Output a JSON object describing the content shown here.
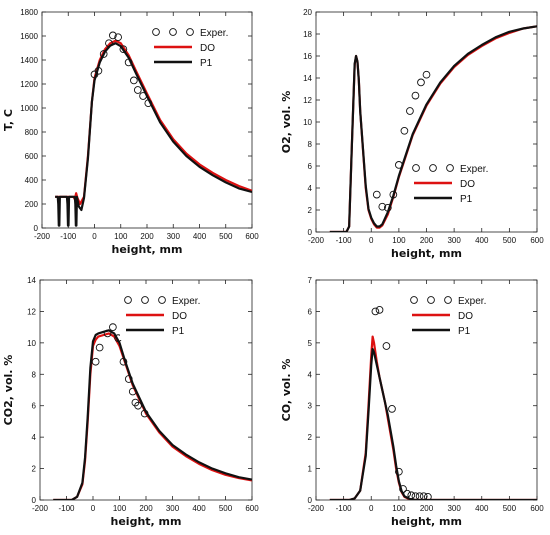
{
  "chart_data": [
    {
      "type": "line",
      "id": "temperature",
      "xlabel": "height,  mm",
      "ylabel": "T, C",
      "xlim": [
        -200,
        600
      ],
      "ylim": [
        0,
        1800
      ],
      "xticks": [
        -200,
        -100,
        0,
        100,
        200,
        300,
        400,
        500,
        600
      ],
      "yticks": [
        0,
        200,
        400,
        600,
        800,
        1000,
        1200,
        1400,
        1600,
        1800
      ],
      "legend": "top-right",
      "grid": false,
      "series": [
        {
          "name": "Exper.",
          "style": "marker",
          "color": "#111111",
          "x": [
            0,
            15,
            35,
            55,
            70,
            90,
            110,
            130,
            150,
            165,
            185,
            205
          ],
          "y": [
            1280,
            1310,
            1450,
            1540,
            1605,
            1590,
            1490,
            1380,
            1230,
            1150,
            1100,
            1040
          ]
        },
        {
          "name": "DO",
          "style": "line",
          "color": "#dd1111",
          "x": [
            -150,
            -100,
            -80,
            -75,
            -70,
            -65,
            -55,
            -40,
            -25,
            -10,
            0,
            20,
            40,
            60,
            80,
            100,
            130,
            160,
            200,
            250,
            300,
            350,
            400,
            450,
            500,
            550,
            600
          ],
          "y": [
            260,
            260,
            260,
            240,
            290,
            250,
            200,
            260,
            600,
            1050,
            1250,
            1400,
            1490,
            1540,
            1560,
            1540,
            1440,
            1300,
            1120,
            900,
            740,
            620,
            530,
            460,
            400,
            350,
            310
          ]
        },
        {
          "name": "P1",
          "style": "line",
          "color": "#111111",
          "x": [
            -150,
            -140,
            -138,
            -136,
            -134,
            -132,
            -120,
            -105,
            -103,
            -101,
            -99,
            -97,
            -95,
            -75,
            -73,
            -71,
            -69,
            -67,
            -60,
            -50,
            -40,
            -25,
            -10,
            0,
            20,
            40,
            60,
            80,
            100,
            130,
            160,
            200,
            250,
            300,
            350,
            400,
            450,
            500,
            550,
            600
          ],
          "y": [
            260,
            260,
            200,
            20,
            20,
            260,
            260,
            260,
            200,
            20,
            20,
            260,
            260,
            260,
            200,
            20,
            20,
            260,
            180,
            150,
            250,
            580,
            1050,
            1230,
            1380,
            1470,
            1520,
            1540,
            1515,
            1420,
            1280,
            1100,
            880,
            720,
            600,
            510,
            440,
            380,
            330,
            300
          ]
        }
      ]
    },
    {
      "type": "line",
      "id": "oxygen",
      "xlabel": "height,  mm",
      "ylabel": "O2, vol. %",
      "xlim": [
        -200,
        600
      ],
      "ylim": [
        0,
        20
      ],
      "xticks": [
        -200,
        -100,
        0,
        100,
        200,
        300,
        400,
        500,
        600
      ],
      "yticks": [
        0,
        2,
        4,
        6,
        8,
        10,
        12,
        14,
        16,
        18,
        20
      ],
      "legend": "center-right",
      "grid": false,
      "series": [
        {
          "name": "Exper.",
          "style": "marker",
          "color": "#111111",
          "x": [
            20,
            40,
            60,
            80,
            100,
            120,
            140,
            160,
            180,
            200
          ],
          "y": [
            3.4,
            2.3,
            2.2,
            3.4,
            6.1,
            9.2,
            11.0,
            12.4,
            13.6,
            14.3
          ]
        },
        {
          "name": "DO",
          "style": "line",
          "color": "#dd1111",
          "x": [
            -150,
            -110,
            -100,
            -90,
            -80,
            -70,
            -60,
            -55,
            -50,
            -45,
            -40,
            -30,
            -20,
            -10,
            0,
            10,
            20,
            30,
            40,
            60,
            80,
            100,
            150,
            200,
            250,
            300,
            350,
            400,
            450,
            500,
            550,
            600
          ],
          "y": [
            0,
            0,
            0,
            0,
            0.5,
            8.0,
            15.2,
            16.0,
            15.5,
            13.8,
            11.0,
            7.5,
            4.0,
            2.0,
            1.2,
            0.7,
            0.4,
            0.4,
            0.6,
            1.6,
            3.2,
            5.0,
            8.8,
            11.5,
            13.5,
            15.0,
            16.1,
            16.9,
            17.6,
            18.1,
            18.5,
            18.7
          ]
        },
        {
          "name": "P1",
          "style": "line",
          "color": "#111111",
          "x": [
            -150,
            -110,
            -100,
            -90,
            -80,
            -70,
            -60,
            -55,
            -50,
            -45,
            -40,
            -30,
            -20,
            -10,
            0,
            10,
            20,
            30,
            40,
            60,
            80,
            100,
            150,
            200,
            250,
            300,
            350,
            400,
            450,
            500,
            550,
            600
          ],
          "y": [
            0,
            0,
            0,
            0,
            0.5,
            8.0,
            15.3,
            16.0,
            15.5,
            13.8,
            11.0,
            7.6,
            4.2,
            2.1,
            1.3,
            0.8,
            0.5,
            0.5,
            0.7,
            1.8,
            3.3,
            5.1,
            8.9,
            11.6,
            13.6,
            15.1,
            16.2,
            17.0,
            17.7,
            18.2,
            18.5,
            18.7
          ]
        }
      ]
    },
    {
      "type": "line",
      "id": "carbon-dioxide",
      "xlabel": "height,  mm",
      "ylabel": "CO2, vol. %",
      "xlim": [
        -200,
        600
      ],
      "ylim": [
        0,
        14
      ],
      "xticks": [
        -200,
        -100,
        0,
        100,
        200,
        300,
        400,
        500,
        600
      ],
      "yticks": [
        0,
        2,
        4,
        6,
        8,
        10,
        12,
        14
      ],
      "legend": "top-right",
      "grid": false,
      "series": [
        {
          "name": "Exper.",
          "style": "marker",
          "color": "#111111",
          "x": [
            10,
            25,
            55,
            75,
            95,
            115,
            135,
            150,
            160,
            170,
            195
          ],
          "y": [
            8.8,
            9.7,
            10.6,
            11.0,
            10.3,
            8.8,
            7.7,
            6.9,
            6.2,
            6.0,
            5.5
          ]
        },
        {
          "name": "DO",
          "style": "line",
          "color": "#dd1111",
          "x": [
            -150,
            -80,
            -60,
            -40,
            -30,
            -20,
            -10,
            0,
            10,
            20,
            40,
            60,
            80,
            100,
            120,
            150,
            200,
            250,
            300,
            350,
            400,
            450,
            500,
            550,
            600
          ],
          "y": [
            0,
            0,
            0.2,
            1.0,
            2.5,
            5.0,
            8.0,
            9.8,
            10.2,
            10.4,
            10.5,
            10.6,
            10.4,
            9.8,
            8.8,
            7.3,
            5.5,
            4.3,
            3.4,
            2.8,
            2.3,
            1.9,
            1.6,
            1.4,
            1.25
          ]
        },
        {
          "name": "P1",
          "style": "line",
          "color": "#111111",
          "x": [
            -150,
            -80,
            -60,
            -40,
            -30,
            -20,
            -10,
            0,
            10,
            20,
            40,
            60,
            80,
            100,
            120,
            150,
            200,
            250,
            300,
            350,
            400,
            450,
            500,
            550,
            600
          ],
          "y": [
            0,
            0,
            0.2,
            1.1,
            2.7,
            5.3,
            8.4,
            10.1,
            10.5,
            10.6,
            10.7,
            10.8,
            10.6,
            10.0,
            8.9,
            7.4,
            5.6,
            4.4,
            3.5,
            2.9,
            2.4,
            2.0,
            1.7,
            1.45,
            1.3
          ]
        }
      ]
    },
    {
      "type": "line",
      "id": "carbon-monoxide",
      "xlabel": "height,  mm",
      "ylabel": "CO, vol. %",
      "xlim": [
        -200,
        600
      ],
      "ylim": [
        0,
        7
      ],
      "xticks": [
        -200,
        -100,
        0,
        100,
        200,
        300,
        400,
        500,
        600
      ],
      "yticks": [
        0,
        1,
        2,
        3,
        4,
        5,
        6,
        7
      ],
      "legend": "top-right",
      "grid": false,
      "series": [
        {
          "name": "Exper.",
          "style": "marker",
          "color": "#111111",
          "x": [
            15,
            30,
            55,
            75,
            100,
            115,
            130,
            145,
            160,
            175,
            190,
            205
          ],
          "y": [
            6.0,
            6.05,
            4.9,
            2.9,
            0.9,
            0.35,
            0.2,
            0.15,
            0.12,
            0.12,
            0.12,
            0.1
          ]
        },
        {
          "name": "DO",
          "style": "line",
          "color": "#dd1111",
          "x": [
            -150,
            -80,
            -60,
            -40,
            -20,
            -10,
            0,
            5,
            10,
            20,
            30,
            40,
            50,
            60,
            70,
            80,
            90,
            100,
            110,
            120,
            140,
            160,
            200,
            300,
            400,
            500,
            600
          ],
          "y": [
            0,
            0,
            0.05,
            0.3,
            1.5,
            3.0,
            4.6,
            5.2,
            5.0,
            4.4,
            3.9,
            3.5,
            3.1,
            2.6,
            2.1,
            1.6,
            1.0,
            0.55,
            0.25,
            0.1,
            0.02,
            0,
            0,
            0,
            0,
            0,
            0
          ]
        },
        {
          "name": "P1",
          "style": "line",
          "color": "#111111",
          "x": [
            -150,
            -80,
            -60,
            -40,
            -20,
            -10,
            0,
            5,
            10,
            20,
            30,
            40,
            50,
            60,
            70,
            80,
            90,
            100,
            110,
            120,
            140,
            160,
            200,
            300,
            400,
            500,
            600
          ],
          "y": [
            0,
            0,
            0.05,
            0.3,
            1.4,
            2.8,
            4.3,
            4.8,
            4.7,
            4.3,
            3.9,
            3.5,
            3.1,
            2.7,
            2.2,
            1.7,
            1.1,
            0.6,
            0.28,
            0.12,
            0.03,
            0,
            0,
            0,
            0,
            0,
            0
          ]
        }
      ]
    }
  ]
}
